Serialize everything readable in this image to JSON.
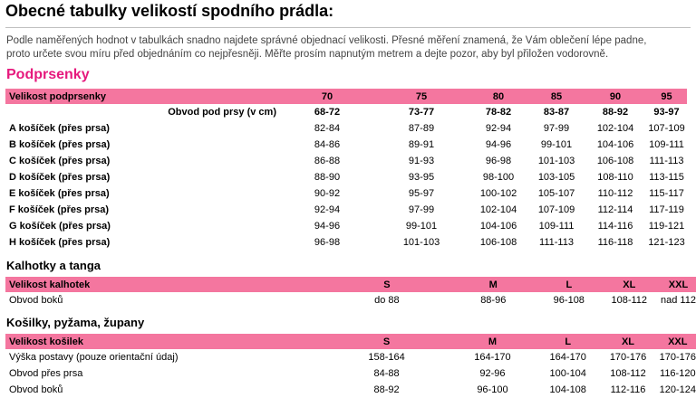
{
  "title": "Obecné tabulky velikostí spodního prádla:",
  "intro": [
    "Podle naměřených hodnot v tabulkách snadno najdete správné objednací velikosti. Přesné měření znamená, že Vám oblečení lépe padne,",
    "proto určete svou míru před objednáním co nejpřesněji. Měřte prosím napnutým metrem a dejte pozor, aby byl přiložen vodorovně."
  ],
  "colors": {
    "accent_pink": "#e6197d",
    "header_band": "#f4769f"
  },
  "bras": {
    "heading": "Podprsenky",
    "header_label": "Velikost podprsenky",
    "sizes": [
      "70",
      "75",
      "80",
      "85",
      "90",
      "95"
    ],
    "band_label": "Obvod pod prsy (v cm)",
    "band": [
      "68-72",
      "73-77",
      "78-82",
      "83-87",
      "88-92",
      "93-97"
    ],
    "rows": [
      {
        "label": "A košíček (přes prsa)",
        "values": [
          "82-84",
          "87-89",
          "92-94",
          "97-99",
          "102-104",
          "107-109"
        ]
      },
      {
        "label": "B košíček (přes prsa)",
        "values": [
          "84-86",
          "89-91",
          "94-96",
          "99-101",
          "104-106",
          "109-111"
        ]
      },
      {
        "label": "C košíček (přes prsa)",
        "values": [
          "86-88",
          "91-93",
          "96-98",
          "101-103",
          "106-108",
          "111-113"
        ]
      },
      {
        "label": "D košíček (přes prsa)",
        "values": [
          "88-90",
          "93-95",
          "98-100",
          "103-105",
          "108-110",
          "113-115"
        ]
      },
      {
        "label": "E košíček (přes prsa)",
        "values": [
          "90-92",
          "95-97",
          "100-102",
          "105-107",
          "110-112",
          "115-117"
        ]
      },
      {
        "label": "F košíček (přes prsa)",
        "values": [
          "92-94",
          "97-99",
          "102-104",
          "107-109",
          "112-114",
          "117-119"
        ]
      },
      {
        "label": "G košíček (přes prsa)",
        "values": [
          "94-96",
          "99-101",
          "104-106",
          "109-111",
          "114-116",
          "119-121"
        ]
      },
      {
        "label": "H košíček (přes prsa)",
        "values": [
          "96-98",
          "101-103",
          "106-108",
          "111-113",
          "116-118",
          "121-123"
        ]
      }
    ]
  },
  "briefs": {
    "heading": "Kalhotky a tanga",
    "header_label": "Velikost kalhotek",
    "sizes": [
      "S",
      "M",
      "L",
      "XL",
      "XXL"
    ],
    "rows": [
      {
        "label": "Obvod boků",
        "values": [
          "do 88",
          "88-96",
          "96-108",
          "108-112",
          "nad 112"
        ]
      }
    ]
  },
  "shirts": {
    "heading": "Košilky, pyžama, župany",
    "header_label": "Velikost košilek",
    "sizes": [
      "S",
      "M",
      "L",
      "XL",
      "XXL"
    ],
    "rows": [
      {
        "label": "Výška postavy (pouze orientační údaj)",
        "values": [
          "158-164",
          "164-170",
          "164-170",
          "170-176",
          "170-176"
        ]
      },
      {
        "label": "Obvod přes prsa",
        "values": [
          "84-88",
          "92-96",
          "100-104",
          "108-112",
          "116-120"
        ]
      },
      {
        "label": "Obvod boků",
        "values": [
          "88-92",
          "96-100",
          "104-108",
          "112-116",
          "120-124"
        ]
      }
    ]
  }
}
